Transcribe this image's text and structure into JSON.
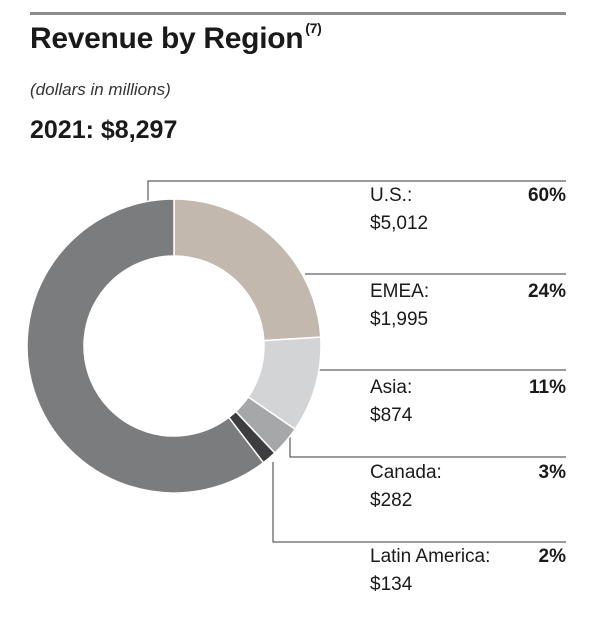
{
  "header": {
    "title": "Revenue by Region",
    "footnote": "(7)",
    "subtitle": "(dollars in millions)",
    "total": "2021: $8,297"
  },
  "chart_data": {
    "type": "pie",
    "style": "donut",
    "title": "Revenue by Region",
    "unit": "dollars in millions",
    "total": 8297,
    "slices": [
      {
        "label": "U.S.:",
        "value_label": "$5,012",
        "value": 5012,
        "percent_label": "60%",
        "percent": 60,
        "color": "#7b7c7e"
      },
      {
        "label": "EMEA:",
        "value_label": "$1,995",
        "value": 1995,
        "percent_label": "24%",
        "percent": 24,
        "color": "#c3b8ad"
      },
      {
        "label": "Asia:",
        "value_label": "$874",
        "value": 874,
        "percent_label": "11%",
        "percent": 11,
        "color": "#d3d4d6"
      },
      {
        "label": "Canada:",
        "value_label": "$282",
        "value": 282,
        "percent_label": "3%",
        "percent": 3,
        "color": "#a6a7a9"
      },
      {
        "label": "Latin America:",
        "value_label": "$134",
        "value": 134,
        "percent_label": "2%",
        "percent": 2,
        "color": "#3d3d3f"
      }
    ]
  }
}
